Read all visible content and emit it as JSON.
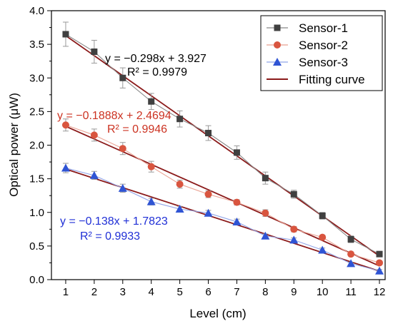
{
  "chart_data": {
    "type": "scatter",
    "xlabel": "Level (cm)",
    "ylabel": "Optical power (μW)",
    "xlim": [
      0.5,
      12.2
    ],
    "ylim": [
      0,
      4.0
    ],
    "xticks": [
      "1",
      "2",
      "3",
      "4",
      "5",
      "6",
      "7",
      "8",
      "9",
      "10",
      "11",
      "12"
    ],
    "yticks": [
      "0.0",
      "0.5",
      "1.0",
      "1.5",
      "2.0",
      "2.5",
      "3.0",
      "3.5",
      "4.0"
    ],
    "x": [
      1,
      2,
      3,
      4,
      5,
      6,
      7,
      8,
      9,
      10,
      11,
      12
    ],
    "series": [
      {
        "name": "Sensor-1",
        "color": "#404040",
        "marker": "square",
        "values": [
          3.65,
          3.39,
          3.0,
          2.65,
          2.39,
          2.18,
          1.89,
          1.51,
          1.27,
          0.95,
          0.6,
          0.38
        ],
        "errors": [
          0.18,
          0.17,
          0.15,
          0.12,
          0.12,
          0.11,
          0.1,
          0.09,
          0.06,
          0.05,
          0.05,
          0.04
        ],
        "fit": {
          "slope": -0.298,
          "intercept": 3.927
        },
        "equation": "y = −0.298x + 3.927",
        "r2": "R² = 0.9979"
      },
      {
        "name": "Sensor-2",
        "color": "#d9553f",
        "marker": "circle",
        "values": [
          2.3,
          2.15,
          1.95,
          1.68,
          1.42,
          1.27,
          1.15,
          0.99,
          0.75,
          0.63,
          0.38,
          0.25
        ],
        "errors": [
          0.09,
          0.09,
          0.09,
          0.08,
          0.06,
          0.05,
          0.04,
          0.05,
          0.04,
          0.03,
          0.03,
          0.03
        ],
        "fit": {
          "slope": -0.1888,
          "intercept": 2.4694
        },
        "equation": "y = −0.1888x + 2.4694",
        "r2": "R² = 0.9946"
      },
      {
        "name": "Sensor-3",
        "color": "#2f54d4",
        "marker": "triangle",
        "values": [
          1.66,
          1.55,
          1.36,
          1.16,
          1.05,
          0.99,
          0.86,
          0.65,
          0.59,
          0.44,
          0.24,
          0.13
        ],
        "errors": [
          0.07,
          0.06,
          0.06,
          0.05,
          0.04,
          0.04,
          0.04,
          0.03,
          0.03,
          0.03,
          0.02,
          0.02
        ],
        "fit": {
          "slope": -0.138,
          "intercept": 1.7823
        },
        "equation": "y = −0.138x + 1.7823",
        "r2": "R² = 0.9933"
      }
    ],
    "fit_legend_label": "Fitting curve",
    "fit_color": "#8b1a1a",
    "equation_colors": [
      "#000000",
      "#cc3322",
      "#1f2fd6"
    ],
    "legend": "top-right",
    "grid": false
  }
}
